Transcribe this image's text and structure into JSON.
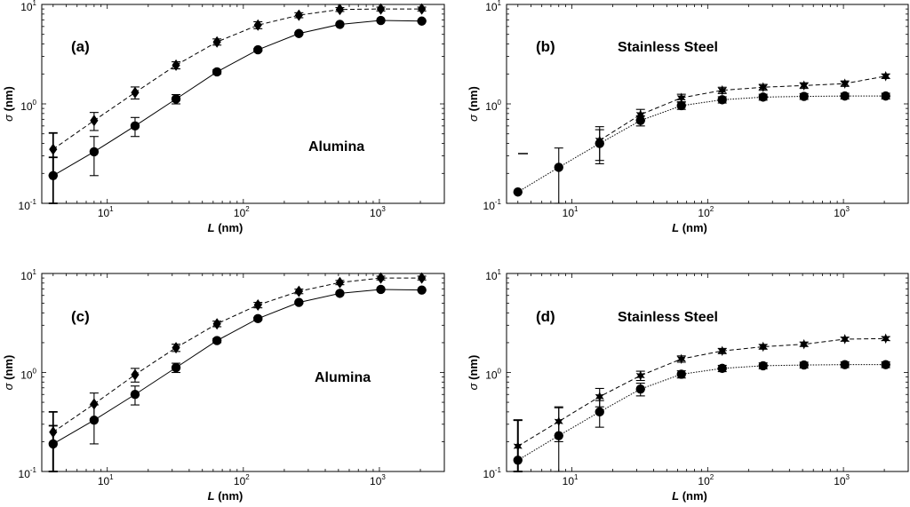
{
  "figure": {
    "xlabel_italic": "L",
    "xlabel_unit": " (nm)",
    "ylabel_symbol": "σ",
    "ylabel_unit": " (nm)",
    "tick_base": "10",
    "x_tick_exponents": [
      "1",
      "2",
      "3"
    ],
    "y_tick_exponents": [
      "-1",
      "0",
      "1"
    ]
  },
  "chart_data": [
    {
      "panel": "(a)",
      "title": "Alumina",
      "type": "line",
      "xscale": "log",
      "yscale": "log",
      "xlim": [
        3.3,
        3000
      ],
      "ylim": [
        0.1,
        10
      ],
      "xlabel": "L (nm)",
      "ylabel": "σ (nm)",
      "series": [
        {
          "name": "diamond-dashed",
          "marker": "diamond",
          "line": "dashed",
          "x": [
            4,
            8,
            16,
            32,
            64,
            128,
            256,
            512,
            1024,
            2048
          ],
          "y": [
            0.35,
            0.68,
            1.3,
            2.45,
            4.2,
            6.2,
            7.8,
            8.9,
            9.0,
            9.0
          ],
          "err": [
            0.16,
            0.14,
            0.18,
            0.2,
            0.3,
            0.5,
            0.45,
            0.4,
            0.4,
            0.4
          ]
        },
        {
          "name": "circle-solid",
          "marker": "circle",
          "line": "solid",
          "x": [
            4,
            8,
            16,
            32,
            64,
            128,
            256,
            512,
            1024,
            2048
          ],
          "y": [
            0.19,
            0.33,
            0.6,
            1.12,
            2.1,
            3.5,
            5.1,
            6.3,
            6.9,
            6.8
          ],
          "err": [
            0.1,
            0.14,
            0.13,
            0.12,
            0.1,
            0.1,
            0.1,
            0.1,
            0.1,
            0.1
          ]
        }
      ]
    },
    {
      "panel": "(b)",
      "title": "Stainless Steel",
      "type": "line",
      "xscale": "log",
      "yscale": "log",
      "xlim": [
        3.3,
        3000
      ],
      "ylim": [
        0.1,
        10
      ],
      "xlabel": "L (nm)",
      "ylabel": "σ (nm)",
      "series": [
        {
          "name": "star-dashed",
          "marker": "star",
          "line": "dashed",
          "x": [
            16,
            32,
            64,
            128,
            256,
            512,
            1024,
            2048
          ],
          "y": [
            0.43,
            0.78,
            1.15,
            1.37,
            1.47,
            1.53,
            1.6,
            1.9
          ],
          "err": [
            0.16,
            0.1,
            0.1,
            0.1,
            0.1,
            0.1,
            0.1,
            0.1
          ]
        },
        {
          "name": "circle-dotted",
          "marker": "circle",
          "line": "dotted",
          "x": [
            4,
            8,
            16,
            32,
            64,
            128,
            256,
            512,
            1024,
            2048
          ],
          "y": [
            0.13,
            0.23,
            0.4,
            0.68,
            0.96,
            1.1,
            1.17,
            1.19,
            1.2,
            1.2
          ],
          "err": [
            0,
            0.13,
            0.15,
            0.08,
            0.08,
            0.08,
            0.08,
            0.08,
            0.08,
            0.08
          ]
        }
      ]
    },
    {
      "panel": "(c)",
      "title": "Alumina",
      "type": "line",
      "xscale": "log",
      "yscale": "log",
      "xlim": [
        3.3,
        3000
      ],
      "ylim": [
        0.1,
        10
      ],
      "xlabel": "L (nm)",
      "ylabel": "σ (nm)",
      "series": [
        {
          "name": "diamond-dashed",
          "marker": "diamond",
          "line": "dashed",
          "x": [
            4,
            8,
            16,
            32,
            64,
            128,
            256,
            512,
            1024,
            2048
          ],
          "y": [
            0.25,
            0.48,
            0.95,
            1.78,
            3.1,
            4.8,
            6.6,
            8.1,
            9.0,
            9.0
          ],
          "err": [
            0.15,
            0.14,
            0.15,
            0.15,
            0.2,
            0.3,
            0.35,
            0.4,
            0.4,
            0.4
          ]
        },
        {
          "name": "circle-solid",
          "marker": "circle",
          "line": "solid",
          "x": [
            4,
            8,
            16,
            32,
            64,
            128,
            256,
            512,
            1024,
            2048
          ],
          "y": [
            0.19,
            0.33,
            0.6,
            1.12,
            2.1,
            3.5,
            5.1,
            6.3,
            6.9,
            6.8
          ],
          "err": [
            0.1,
            0.14,
            0.13,
            0.12,
            0.1,
            0.1,
            0.1,
            0.1,
            0.1,
            0.1
          ]
        }
      ]
    },
    {
      "panel": "(d)",
      "title": "Stainless Steel",
      "type": "line",
      "xscale": "log",
      "yscale": "log",
      "xlim": [
        3.3,
        3000
      ],
      "ylim": [
        0.1,
        10
      ],
      "xlabel": "L (nm)",
      "ylabel": "σ (nm)",
      "series": [
        {
          "name": "star-dashed",
          "marker": "star",
          "line": "dashed",
          "x": [
            4,
            8,
            16,
            32,
            64,
            128,
            256,
            512,
            1024,
            2048
          ],
          "y": [
            0.18,
            0.32,
            0.57,
            0.93,
            1.37,
            1.65,
            1.82,
            1.93,
            2.17,
            2.2
          ],
          "err": [
            0.15,
            0.12,
            0.12,
            0.1,
            0.1,
            0.1,
            0.1,
            0.1,
            0.1,
            0.1
          ]
        },
        {
          "name": "circle-dotted",
          "marker": "circle",
          "line": "dotted",
          "x": [
            4,
            8,
            16,
            32,
            64,
            128,
            256,
            512,
            1024,
            2048
          ],
          "y": [
            0.13,
            0.23,
            0.4,
            0.68,
            0.96,
            1.1,
            1.17,
            1.19,
            1.2,
            1.2
          ],
          "err": [
            0.2,
            0.22,
            0.12,
            0.1,
            0.08,
            0.08,
            0.08,
            0.08,
            0.08,
            0.08
          ]
        }
      ]
    }
  ]
}
